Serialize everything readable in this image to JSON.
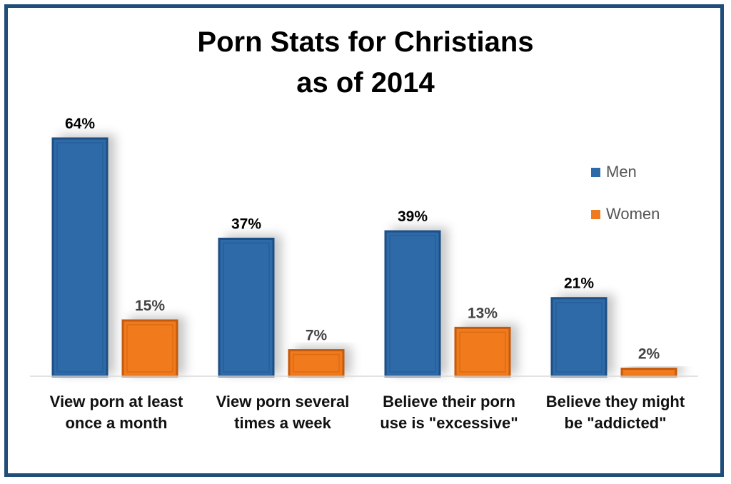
{
  "chart_data": {
    "type": "bar",
    "title_line1": "Porn Stats for Christians",
    "title_line2": "as of 2014",
    "categories": [
      [
        "View porn at least",
        "once a month"
      ],
      [
        "View porn several",
        "times a week"
      ],
      [
        "Believe their porn",
        "use is \"excessive\""
      ],
      [
        "Believe they might",
        "be \"addicted\""
      ]
    ],
    "series": [
      {
        "name": "Men",
        "values": [
          64,
          37,
          39,
          21
        ],
        "labels": [
          "64%",
          "37%",
          "39%",
          "21%"
        ],
        "color": "#2e6aa8"
      },
      {
        "name": "Women",
        "values": [
          15,
          7,
          13,
          2
        ],
        "labels": [
          "15%",
          "7%",
          "13%",
          "2%"
        ],
        "color": "#f07a1f"
      }
    ],
    "ylim": [
      0,
      64
    ],
    "grid": false,
    "legend_position": "right"
  }
}
